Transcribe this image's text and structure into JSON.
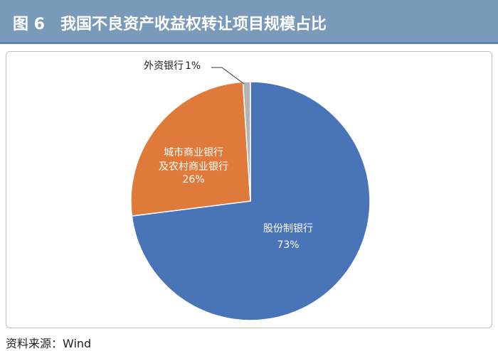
{
  "chart_data": {
    "type": "pie",
    "title": "图 6　我国不良资产收益权转让项目规模占比",
    "source": "资料来源：Wind",
    "categories": [
      "股份制银行",
      "城市商业银行\n及农村商业银行",
      "外资银行"
    ],
    "values": [
      73,
      26,
      1
    ],
    "value_labels": [
      "73%",
      "26%",
      "1%"
    ],
    "colors": [
      "#4a74b8",
      "#e07a3a",
      "#b3b3b3"
    ]
  }
}
